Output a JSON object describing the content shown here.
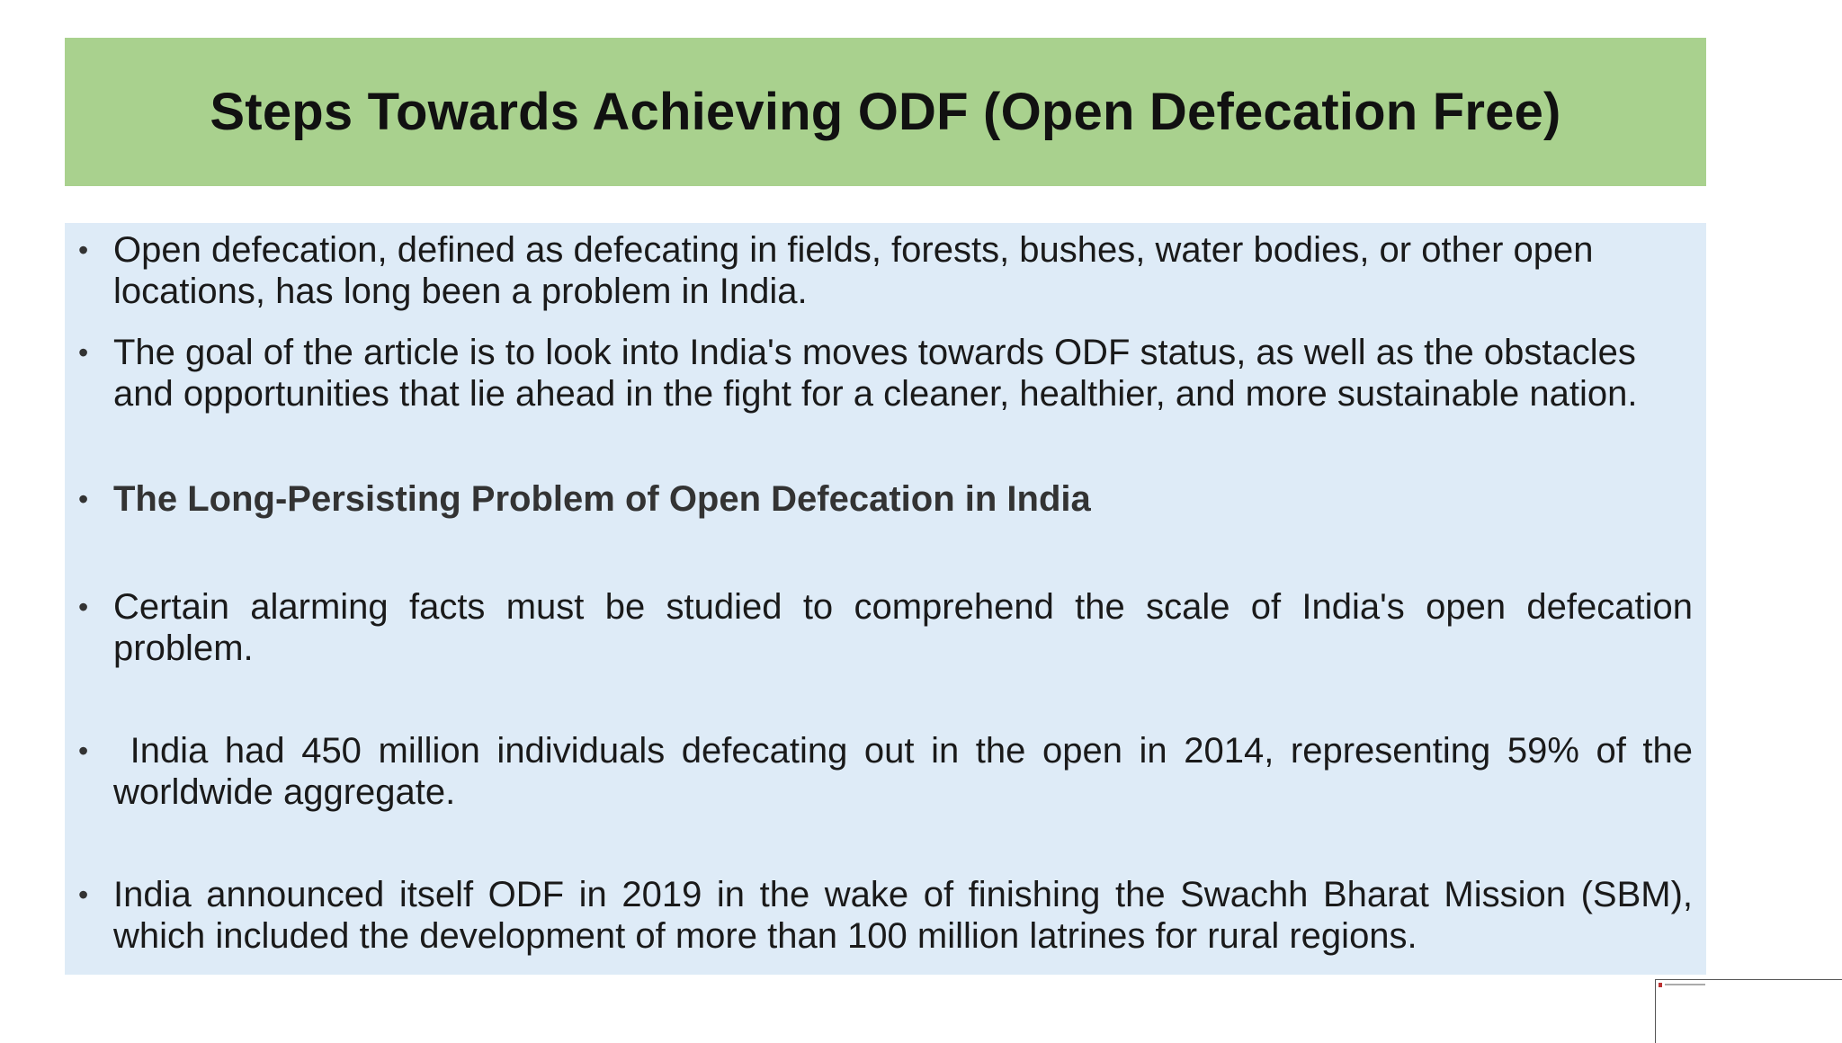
{
  "slide": {
    "title": "Steps Towards Achieving ODF (Open Defecation Free)",
    "bullet_symbol": "•",
    "bullets": [
      {
        "text": "Open defecation, defined as defecating in fields, forests, bushes, water bodies, or other open locations, has long been a problem in India."
      },
      {
        "text": "The goal of the article is to look into India's moves towards ODF status, as well as the obstacles and opportunities that lie ahead in the fight for a cleaner, healthier, and more sustainable nation."
      },
      {
        "text": "The Long-Persisting Problem of Open Defecation in India"
      },
      {
        "text": "Certain alarming facts must be studied to comprehend the scale of India's open defecation problem."
      },
      {
        "text": " India had 450 million individuals defecating out in the open in 2014, representing 59% of the worldwide aggregate."
      },
      {
        "text": "India announced itself ODF in 2019 in the wake of finishing the Swachh Bharat Mission (SBM), which included the development of more than 100 million latrines for rural regions."
      }
    ]
  },
  "colors": {
    "title_background": "#a9d18e",
    "content_background": "#deebf7"
  }
}
